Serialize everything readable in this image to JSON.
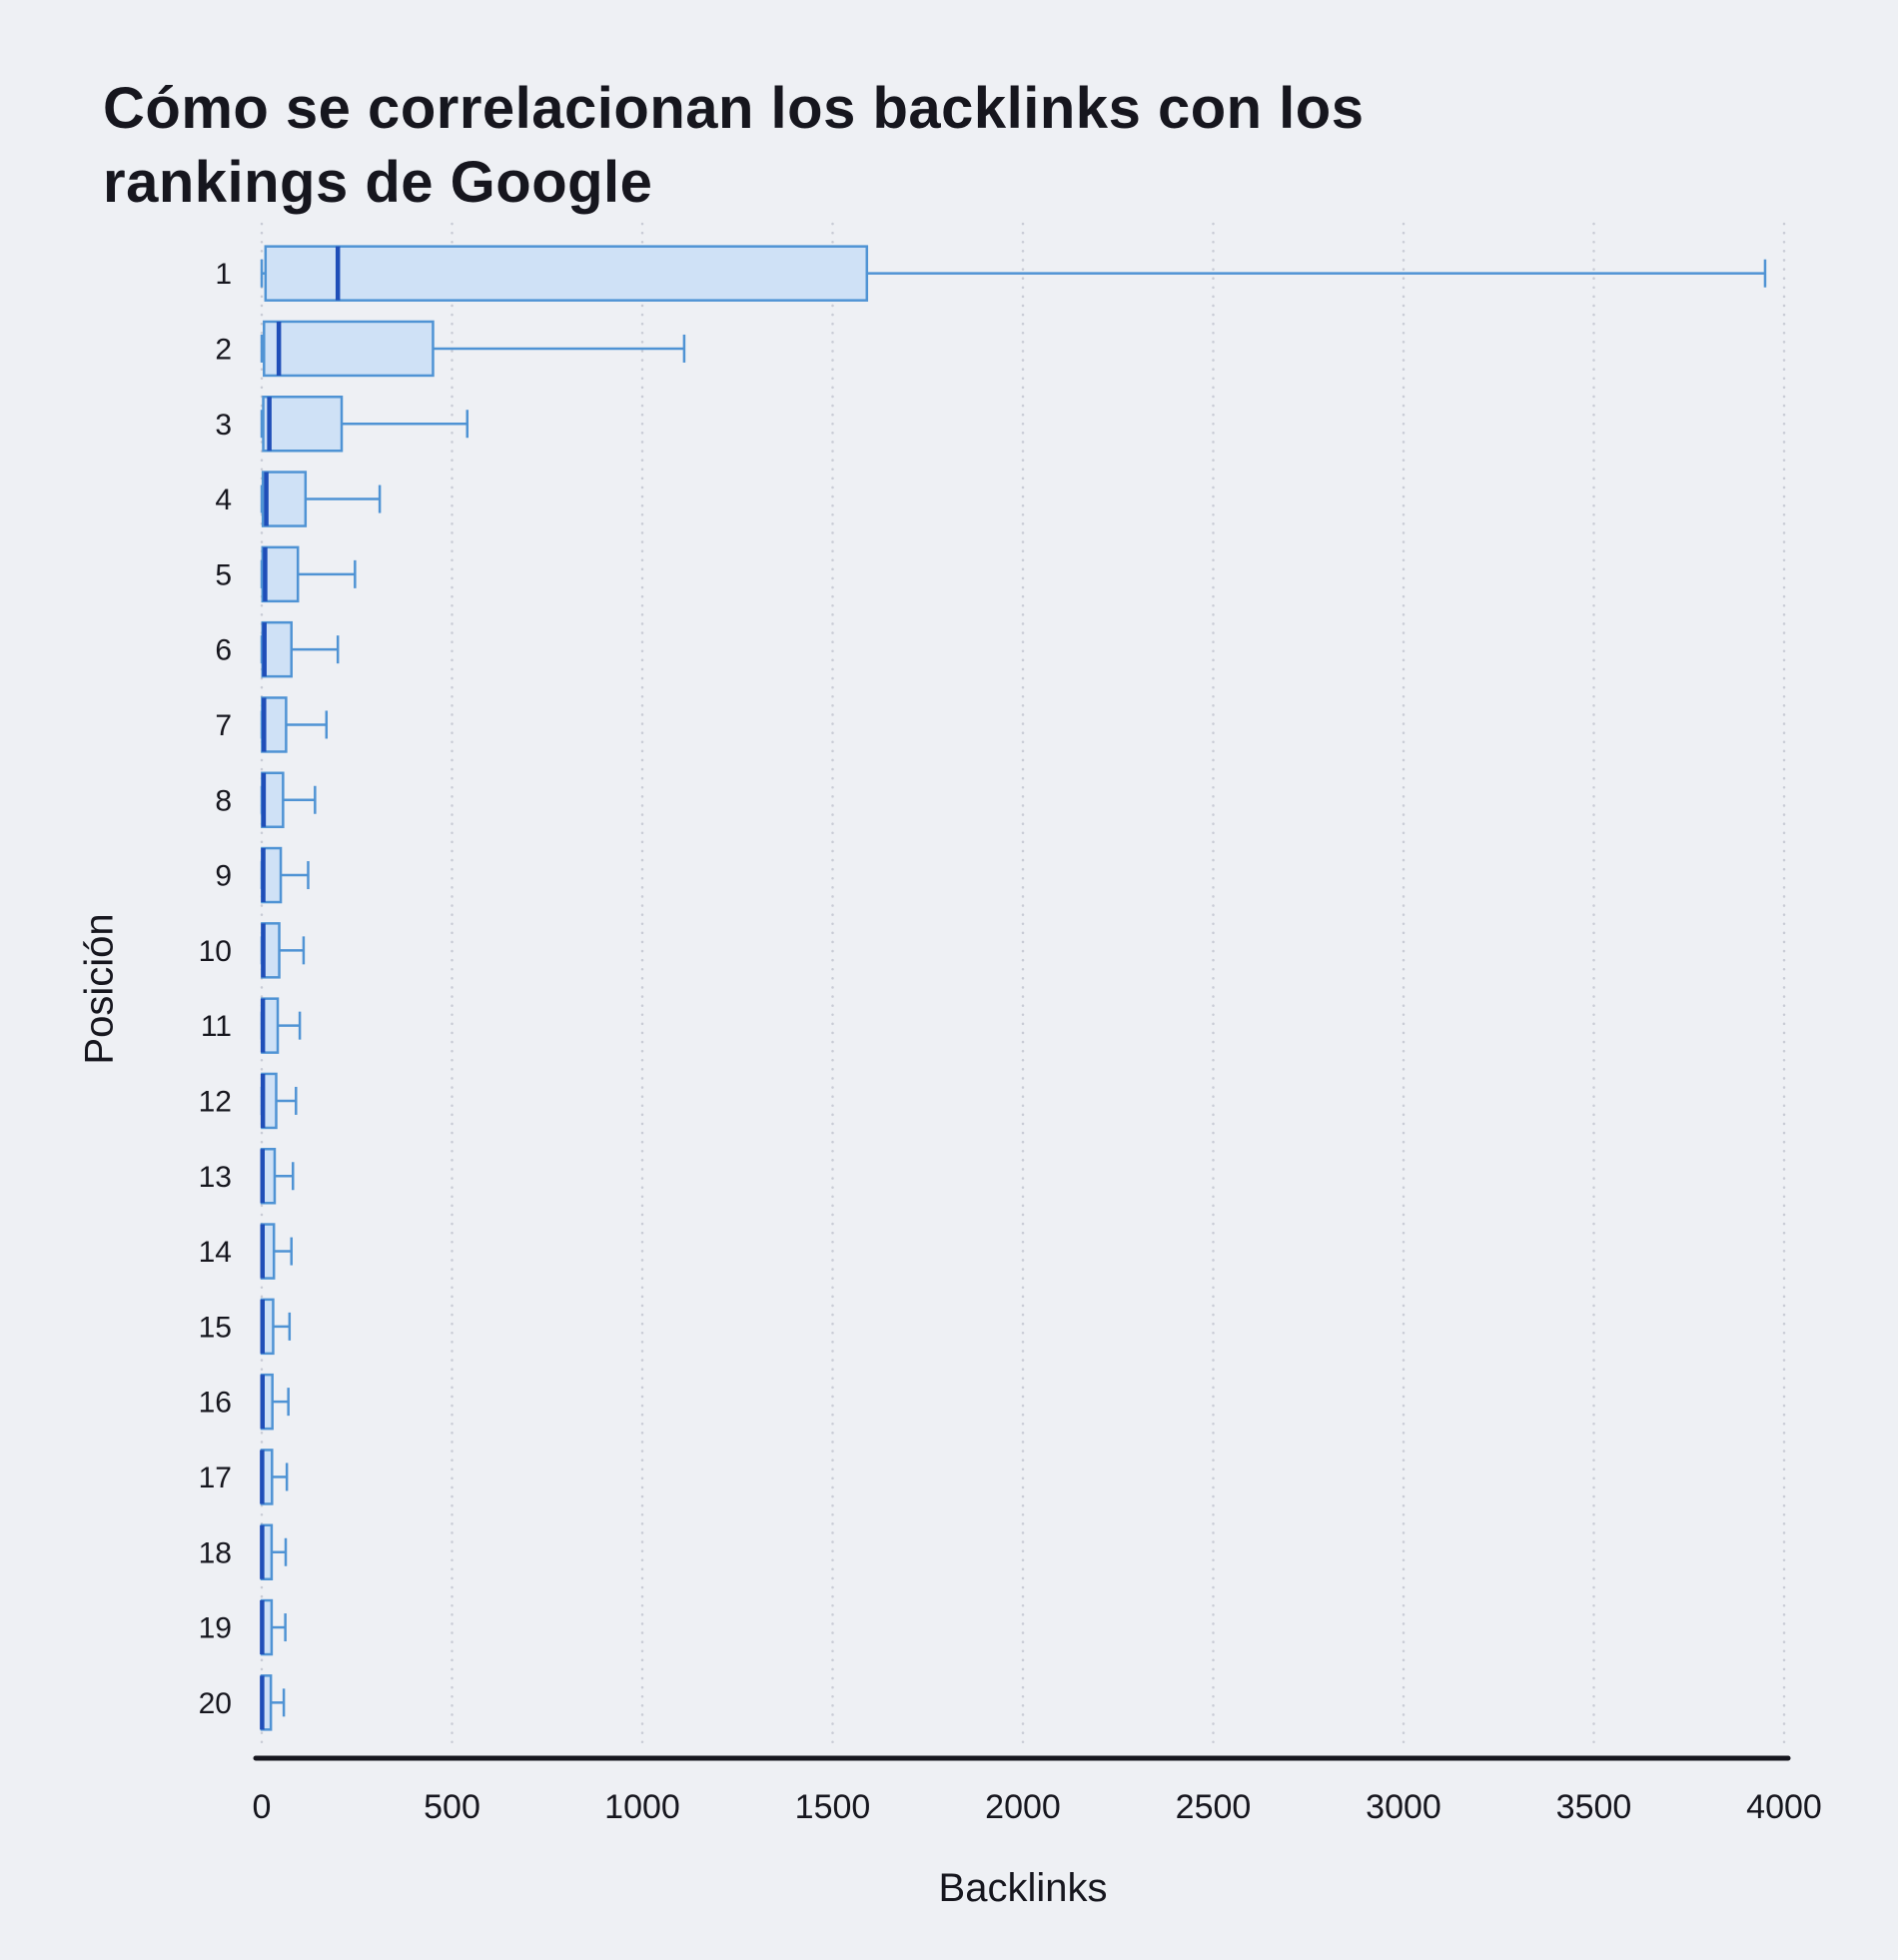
{
  "page": {
    "background": "#eef0f4"
  },
  "chart_data": {
    "type": "boxplot",
    "orientation": "horizontal",
    "title": "Cómo se correlacionan los backlinks con los rankings de Google",
    "xlabel": "Backlinks",
    "ylabel": "Posición",
    "xlim": [
      0,
      4000
    ],
    "xticks": [
      0,
      500,
      1000,
      1500,
      2000,
      2500,
      3000,
      3500,
      4000
    ],
    "grid": "vertical-dotted",
    "legend": "none",
    "colors": {
      "box_fill": "#cfe1f6",
      "box_stroke": "#4f93d4",
      "median": "#1f4eb8",
      "whisker": "#4f93d4",
      "axis": "#16161e",
      "grid": "#c8cbd5",
      "text": "#16161e"
    },
    "series": [
      {
        "position": "1",
        "min": 0,
        "q1": 10,
        "median": 200,
        "q3": 1590,
        "max": 3950
      },
      {
        "position": "2",
        "min": 0,
        "q1": 6,
        "median": 45,
        "q3": 450,
        "max": 1110
      },
      {
        "position": "3",
        "min": 0,
        "q1": 4,
        "median": 20,
        "q3": 210,
        "max": 540
      },
      {
        "position": "4",
        "min": 0,
        "q1": 3,
        "median": 12,
        "q3": 115,
        "max": 310
      },
      {
        "position": "5",
        "min": 0,
        "q1": 2,
        "median": 9,
        "q3": 95,
        "max": 245
      },
      {
        "position": "6",
        "min": 0,
        "q1": 2,
        "median": 7,
        "q3": 78,
        "max": 200
      },
      {
        "position": "7",
        "min": 0,
        "q1": 1,
        "median": 6,
        "q3": 64,
        "max": 170
      },
      {
        "position": "8",
        "min": 0,
        "q1": 1,
        "median": 5,
        "q3": 56,
        "max": 140
      },
      {
        "position": "9",
        "min": 0,
        "q1": 1,
        "median": 4,
        "q3": 50,
        "max": 122
      },
      {
        "position": "10",
        "min": 0,
        "q1": 1,
        "median": 4,
        "q3": 46,
        "max": 110
      },
      {
        "position": "11",
        "min": 0,
        "q1": 1,
        "median": 3,
        "q3": 42,
        "max": 100
      },
      {
        "position": "12",
        "min": 0,
        "q1": 1,
        "median": 3,
        "q3": 38,
        "max": 90
      },
      {
        "position": "13",
        "min": 0,
        "q1": 0,
        "median": 2,
        "q3": 34,
        "max": 82
      },
      {
        "position": "14",
        "min": 0,
        "q1": 0,
        "median": 2,
        "q3": 32,
        "max": 78
      },
      {
        "position": "15",
        "min": 0,
        "q1": 0,
        "median": 2,
        "q3": 30,
        "max": 73
      },
      {
        "position": "16",
        "min": 0,
        "q1": 0,
        "median": 2,
        "q3": 28,
        "max": 70
      },
      {
        "position": "17",
        "min": 0,
        "q1": 0,
        "median": 1,
        "q3": 27,
        "max": 66
      },
      {
        "position": "18",
        "min": 0,
        "q1": 0,
        "median": 1,
        "q3": 26,
        "max": 63
      },
      {
        "position": "19",
        "min": 0,
        "q1": 0,
        "median": 1,
        "q3": 26,
        "max": 62
      },
      {
        "position": "20",
        "min": 0,
        "q1": 0,
        "median": 1,
        "q3": 24,
        "max": 58
      }
    ]
  }
}
